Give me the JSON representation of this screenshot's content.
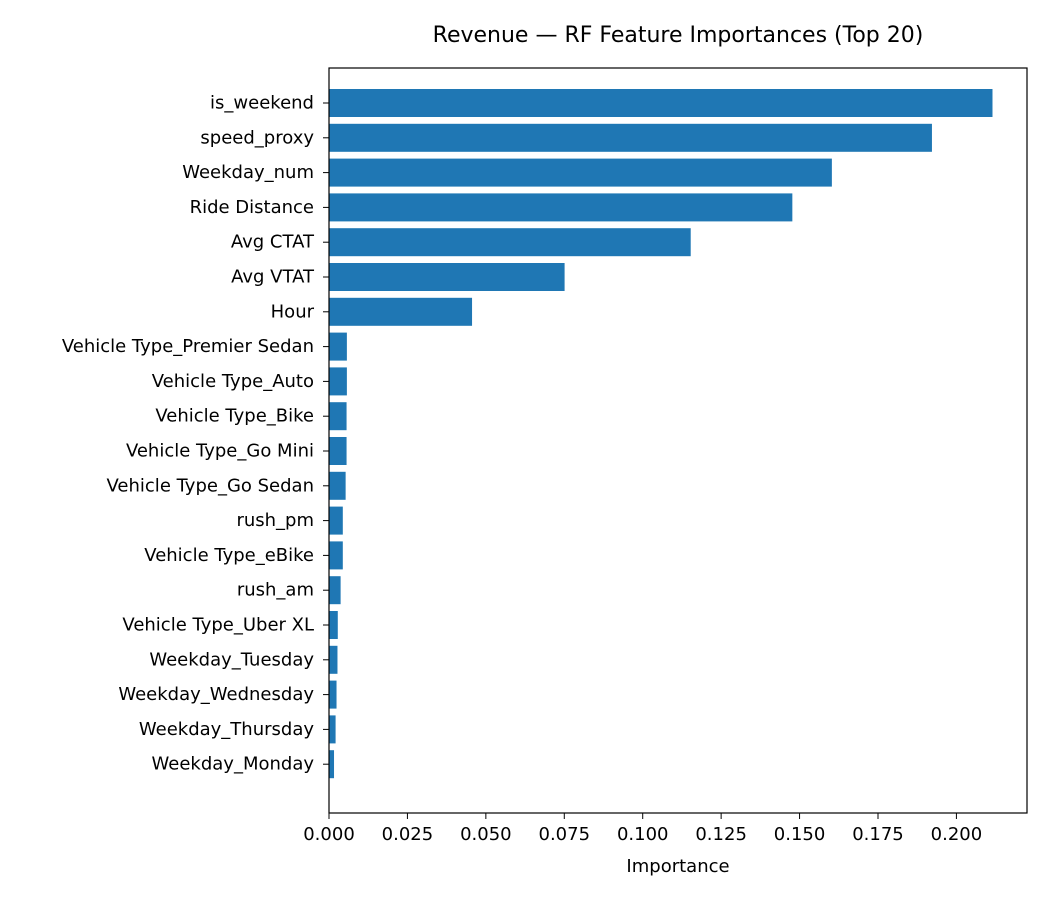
{
  "chart_data": {
    "type": "bar",
    "orientation": "horizontal",
    "title": "Revenue — RF Feature Importances (Top 20)",
    "xlabel": "Importance",
    "ylabel": "",
    "xlim": [
      0,
      0.2225
    ],
    "xticks": [
      0.0,
      0.025,
      0.05,
      0.075,
      0.1,
      0.125,
      0.15,
      0.175,
      0.2
    ],
    "xtick_labels": [
      "0.000",
      "0.025",
      "0.050",
      "0.075",
      "0.100",
      "0.125",
      "0.150",
      "0.175",
      "0.200"
    ],
    "grid": false,
    "bar_color": "#1f77b4",
    "categories": [
      "is_weekend",
      "speed_proxy",
      "Weekday_num",
      "Ride Distance",
      "Avg CTAT",
      "Avg VTAT",
      "Hour",
      "Vehicle Type_Premier Sedan",
      "Vehicle Type_Auto",
      "Vehicle Type_Bike",
      "Vehicle Type_Go Mini",
      "Vehicle Type_Go Sedan",
      "rush_pm",
      "Vehicle Type_eBike",
      "rush_am",
      "Vehicle Type_Uber XL",
      "Weekday_Tuesday",
      "Weekday_Wednesday",
      "Weekday_Thursday",
      "Weekday_Monday"
    ],
    "values": [
      0.2115,
      0.1922,
      0.1603,
      0.1477,
      0.1153,
      0.0751,
      0.0456,
      0.0057,
      0.0057,
      0.0056,
      0.0056,
      0.0053,
      0.0044,
      0.0044,
      0.0037,
      0.0028,
      0.0027,
      0.0024,
      0.0021,
      0.0016
    ]
  }
}
